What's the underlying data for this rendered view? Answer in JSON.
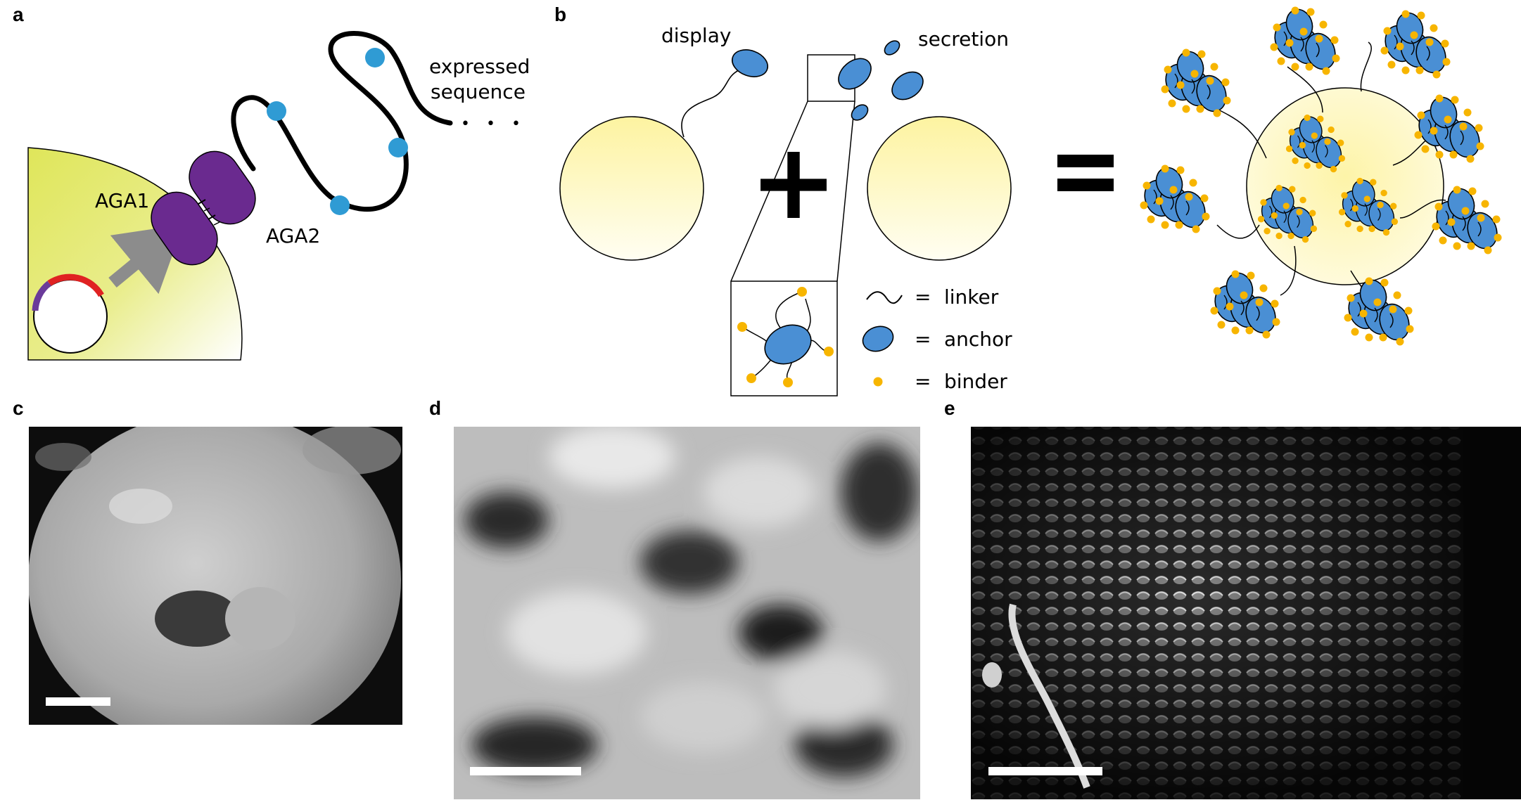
{
  "panels": {
    "a": {
      "label": "a",
      "aga1": "AGA1",
      "aga2": "AGA2",
      "expressed": "expressed",
      "sequence": "sequence",
      "ellipsis": "• • •",
      "colors": {
        "cell": "#dfe65a",
        "aga": "#6a2a8f",
        "bead": "#2f9bd4",
        "plasmid_red": "#e02222",
        "plasmid_purple": "#6a3a9a",
        "arrow": "#8c8c8c"
      }
    },
    "b": {
      "label": "b",
      "display": "display",
      "secretion": "secretion",
      "plus": "+",
      "equals": "=",
      "legend": [
        {
          "symbol": "linker-icon",
          "eq": "=",
          "text": "linker"
        },
        {
          "symbol": "anchor-icon",
          "eq": "=",
          "text": "anchor"
        },
        {
          "symbol": "binder-icon",
          "eq": "=",
          "text": "binder"
        }
      ],
      "colors": {
        "anchor": "#4a8fd4",
        "binder": "#f7b500",
        "cell": "#fdf3a0"
      }
    },
    "c": {
      "label": "c"
    },
    "d": {
      "label": "d"
    },
    "e": {
      "label": "e"
    }
  }
}
